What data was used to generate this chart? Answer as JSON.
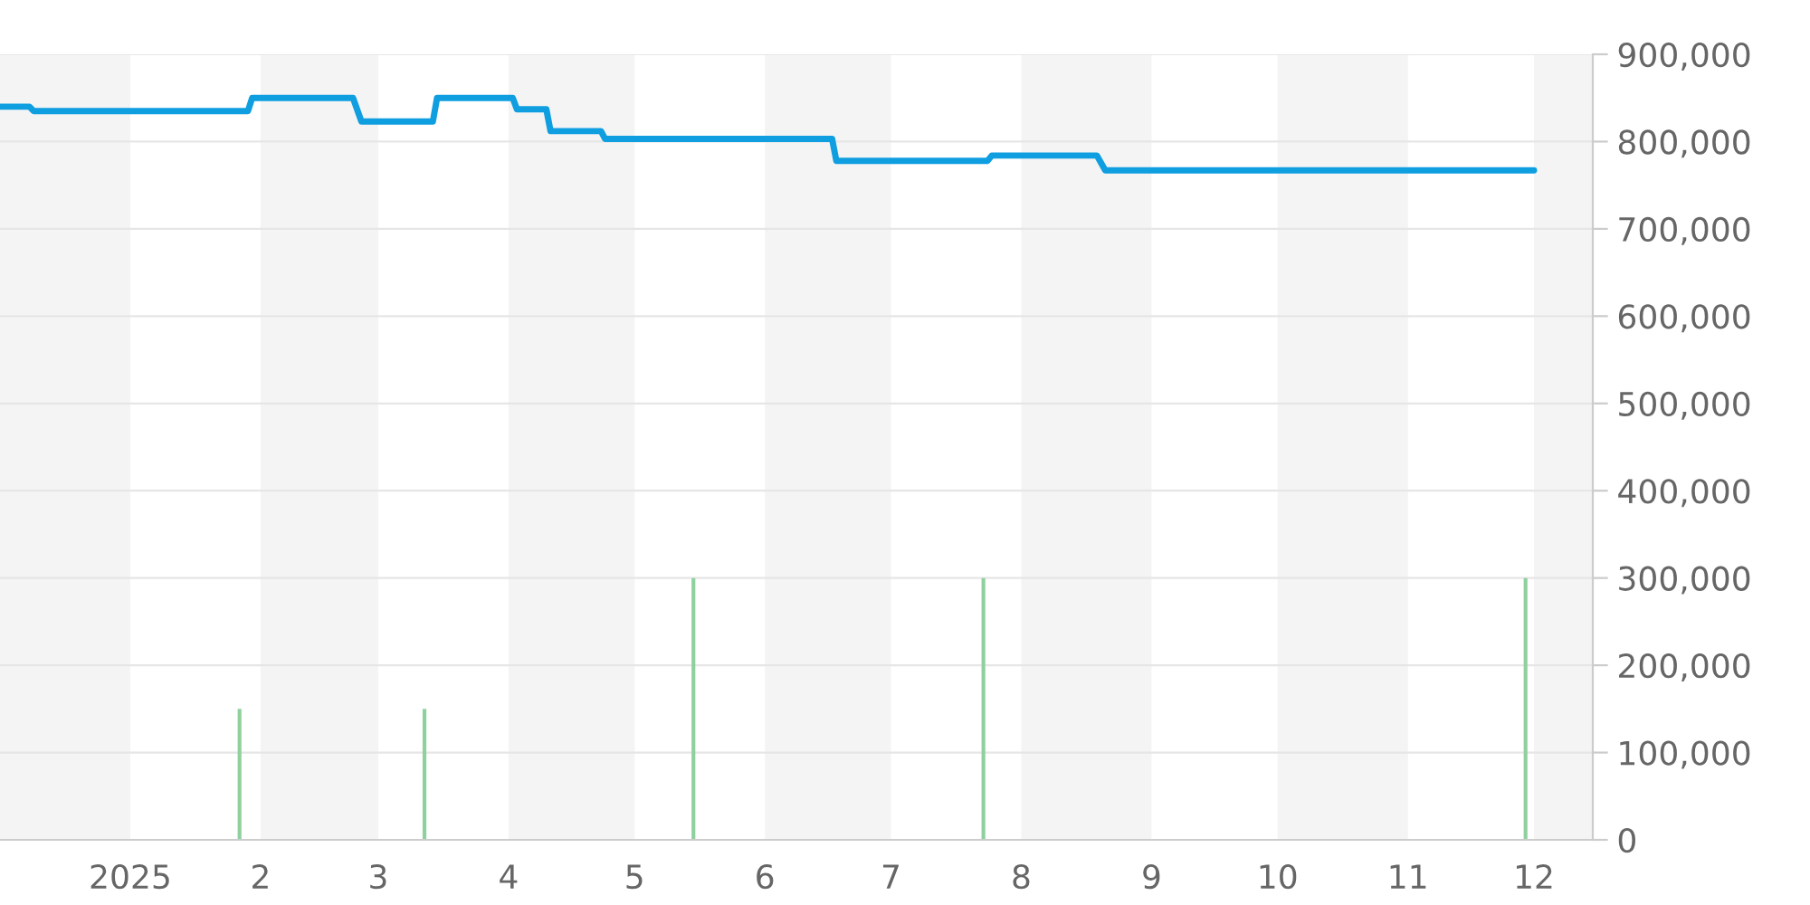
{
  "chart_data": {
    "type": "line",
    "series": [
      {
        "color": "#0f9ee0",
        "x": [
          "2024-12-01",
          "2024-12-08",
          "2024-12-09",
          "2025-01-29",
          "2025-01-30",
          "2025-02-23",
          "2025-02-25",
          "2025-03-14",
          "2025-03-15",
          "2025-04-02",
          "2025-04-03",
          "2025-04-10",
          "2025-04-11",
          "2025-04-23",
          "2025-04-24",
          "2025-06-17",
          "2025-06-18",
          "2025-07-24",
          "2025-07-25",
          "2025-08-19",
          "2025-08-21",
          "2025-12-01"
        ],
        "values": [
          840000,
          840000,
          835000,
          835000,
          850000,
          850000,
          823000,
          823000,
          850000,
          850000,
          837000,
          837000,
          812000,
          812000,
          803000,
          803000,
          778000,
          778000,
          784000,
          784000,
          767000,
          767000
        ]
      },
      {
        "type": "bar",
        "color": "#8fd19e",
        "x": [
          "2025-01-27",
          "2025-03-12",
          "2025-05-15",
          "2025-07-23",
          "2025-11-29"
        ],
        "values": [
          150000,
          150000,
          300000,
          300000,
          300000
        ]
      }
    ],
    "xlim": [
      "2024-12-01",
      "2025-12-15"
    ],
    "xticks": [
      {
        "value": "2025-01-01",
        "label": "2025"
      },
      {
        "value": "2025-02-01",
        "label": "2"
      },
      {
        "value": "2025-03-01",
        "label": "3"
      },
      {
        "value": "2025-04-01",
        "label": "4"
      },
      {
        "value": "2025-05-01",
        "label": "5"
      },
      {
        "value": "2025-06-01",
        "label": "6"
      },
      {
        "value": "2025-07-01",
        "label": "7"
      },
      {
        "value": "2025-08-01",
        "label": "8"
      },
      {
        "value": "2025-09-01",
        "label": "9"
      },
      {
        "value": "2025-10-01",
        "label": "10"
      },
      {
        "value": "2025-11-01",
        "label": "11"
      },
      {
        "value": "2025-12-01",
        "label": "12"
      }
    ],
    "ylim": [
      0,
      900000
    ],
    "yticks": [
      0,
      {
        "value": 100000,
        "label": "100,000"
      },
      {
        "value": 200000,
        "label": "200,000"
      },
      {
        "value": 300000,
        "label": "300,000"
      },
      {
        "value": 400000,
        "label": "400,000"
      },
      {
        "value": 500000,
        "label": "500,000"
      },
      {
        "value": 600000,
        "label": "600,000"
      },
      {
        "value": 700000,
        "label": "700,000"
      },
      {
        "value": 800000,
        "label": "800,000"
      },
      {
        "value": 900000,
        "label": "900,000"
      }
    ],
    "bands": [
      {
        "axis": "x",
        "from": "2024-12-01",
        "to": "2025-01-01",
        "color": "#f4f4f4"
      },
      {
        "axis": "x",
        "from": "2025-02-01",
        "to": "2025-03-01",
        "color": "#f4f4f4"
      },
      {
        "axis": "x",
        "from": "2025-04-01",
        "to": "2025-05-01",
        "color": "#f4f4f4"
      },
      {
        "axis": "x",
        "from": "2025-06-01",
        "to": "2025-07-01",
        "color": "#f4f4f4"
      },
      {
        "axis": "x",
        "from": "2025-08-01",
        "to": "2025-09-01",
        "color": "#f4f4f4"
      },
      {
        "axis": "x",
        "from": "2025-10-01",
        "to": "2025-11-01",
        "color": "#f4f4f4"
      },
      {
        "axis": "x",
        "from": "2025-12-01",
        "to": "2025-12-15",
        "color": "#f4f4f4"
      }
    ],
    "grid": "y",
    "legend": false
  }
}
